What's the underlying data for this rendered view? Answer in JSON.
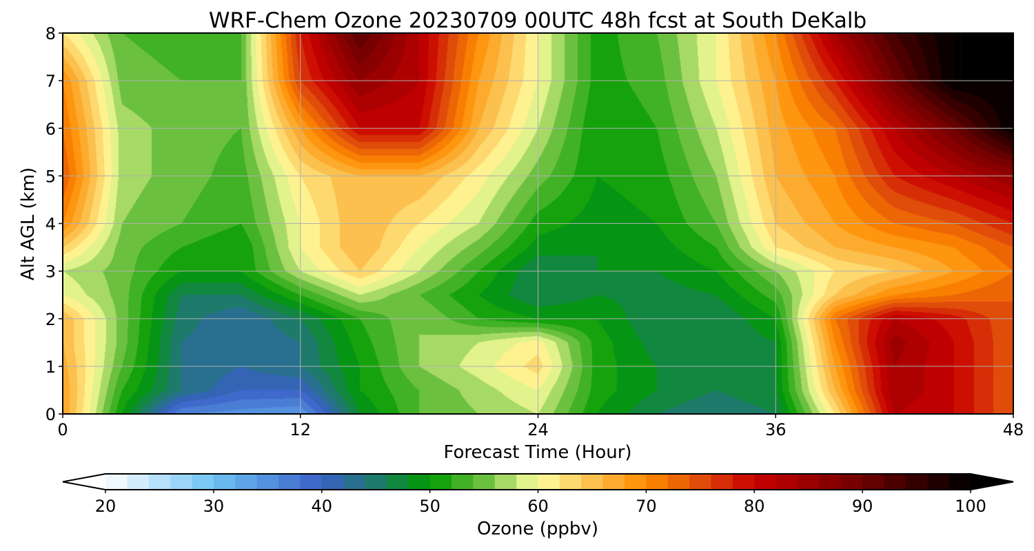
{
  "chart_data": {
    "type": "heatmap",
    "title": "WRF-Chem Ozone  20230709 00UTC 48h fcst at South DeKalb",
    "xlabel": "Forecast Time (Hour)",
    "ylabel": "Alt AGL (km)",
    "xlim": [
      0,
      48
    ],
    "ylim": [
      0,
      8
    ],
    "xticks": [
      0,
      12,
      24,
      36,
      48
    ],
    "yticks": [
      0,
      1,
      2,
      3,
      4,
      5,
      6,
      7,
      8
    ],
    "grid": true,
    "x": [
      0,
      3,
      6,
      9,
      12,
      15,
      18,
      21,
      24,
      27,
      30,
      33,
      36,
      39,
      42,
      45,
      48
    ],
    "y": [
      0,
      0.5,
      1,
      1.5,
      2,
      2.5,
      3,
      3.5,
      4,
      5,
      6,
      7,
      8
    ],
    "values": [
      [
        68,
        50,
        36,
        35,
        34,
        48,
        54,
        56,
        58,
        50,
        46,
        44,
        46,
        62,
        82,
        80,
        74
      ],
      [
        68,
        52,
        44,
        40,
        40,
        50,
        54,
        57,
        60,
        51,
        48,
        46,
        48,
        66,
        84,
        80,
        74
      ],
      [
        67,
        54,
        44,
        42,
        44,
        50,
        56,
        59,
        63,
        51,
        48,
        46,
        48,
        68,
        84,
        80,
        74
      ],
      [
        66,
        55,
        44,
        42,
        44,
        51,
        56,
        58,
        61,
        51,
        47,
        46,
        48,
        70,
        85,
        80,
        74
      ],
      [
        66,
        55,
        45,
        42,
        46,
        52,
        56,
        52,
        50,
        50,
        46,
        46,
        50,
        72,
        82,
        79,
        74
      ],
      [
        60,
        55,
        46,
        46,
        52,
        58,
        54,
        50,
        46,
        48,
        47,
        48,
        53,
        64,
        70,
        72,
        74
      ],
      [
        58,
        55,
        50,
        50,
        58,
        64,
        58,
        52,
        46,
        48,
        48,
        50,
        56,
        62,
        64,
        68,
        72
      ],
      [
        64,
        55,
        52,
        50,
        60,
        66,
        60,
        55,
        49,
        48,
        49,
        52,
        62,
        66,
        68,
        70,
        74
      ],
      [
        70,
        56,
        54,
        52,
        60,
        66,
        62,
        58,
        51,
        49,
        50,
        54,
        64,
        68,
        72,
        74,
        78
      ],
      [
        74,
        57,
        55,
        53,
        62,
        66,
        66,
        61,
        55,
        50,
        51,
        56,
        66,
        70,
        78,
        82,
        86
      ],
      [
        72,
        57,
        55,
        54,
        68,
        80,
        80,
        66,
        58,
        50,
        52,
        58,
        67,
        72,
        82,
        90,
        100
      ],
      [
        70,
        55,
        54,
        54,
        76,
        86,
        82,
        68,
        60,
        51,
        53,
        60,
        68,
        78,
        90,
        100,
        100
      ],
      [
        62,
        54,
        53,
        54,
        78,
        92,
        82,
        70,
        60,
        51,
        54,
        60,
        70,
        84,
        94,
        100,
        100
      ]
    ],
    "colorbar": {
      "label": "Ozone  (ppbv)",
      "min": 20,
      "max": 100,
      "ticks": [
        20,
        30,
        40,
        50,
        60,
        70,
        80,
        90,
        100
      ],
      "extend": "both",
      "colors": [
        {
          "v": 20,
          "c": "#ffffff"
        },
        {
          "v": 30,
          "c": "#6ec3f5"
        },
        {
          "v": 40,
          "c": "#3a5fc6"
        },
        {
          "v": 45,
          "c": "#1e7a6a"
        },
        {
          "v": 50,
          "c": "#009a00"
        },
        {
          "v": 55,
          "c": "#6cc040"
        },
        {
          "v": 60,
          "c": "#ffffa0"
        },
        {
          "v": 65,
          "c": "#fcc04e"
        },
        {
          "v": 70,
          "c": "#ff8c00"
        },
        {
          "v": 75,
          "c": "#e04c0a"
        },
        {
          "v": 80,
          "c": "#c80000"
        },
        {
          "v": 90,
          "c": "#6e0000"
        },
        {
          "v": 100,
          "c": "#000000"
        }
      ]
    }
  }
}
